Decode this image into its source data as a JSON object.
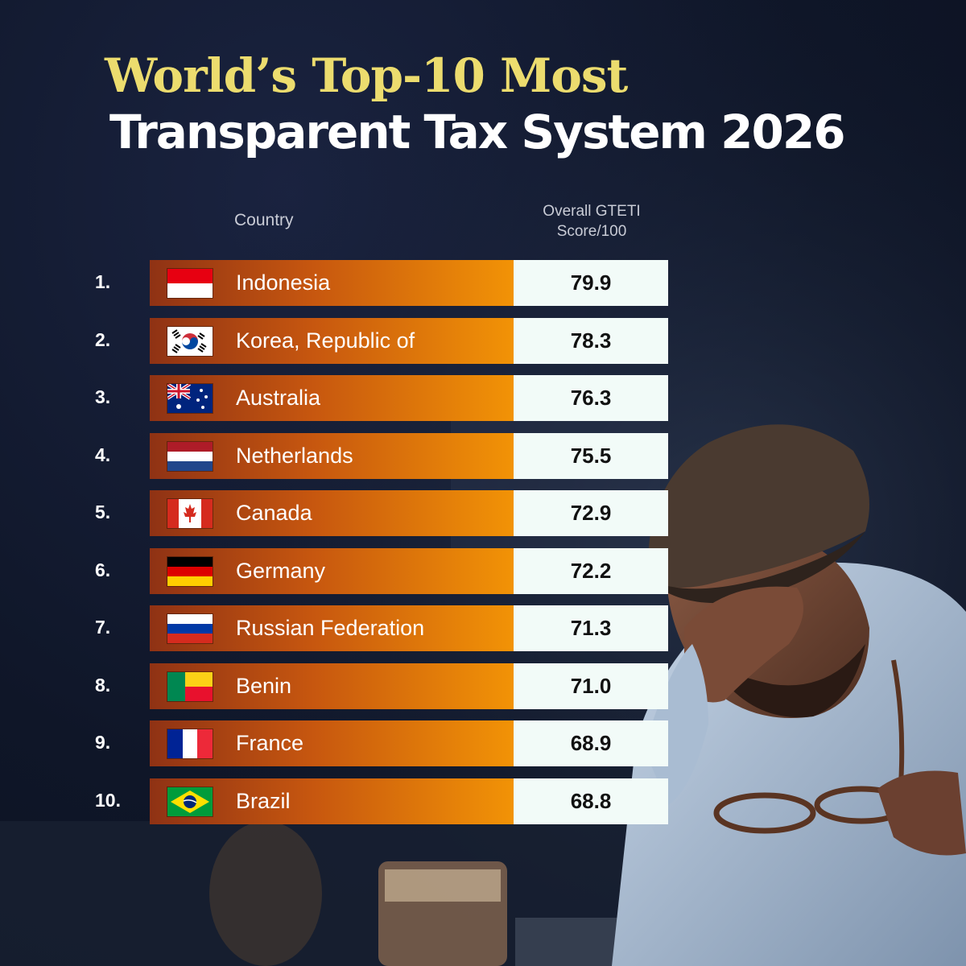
{
  "title_line1": "World’s Top-10 Most",
  "title_line2": "Transparent Tax System 2026",
  "columns": {
    "country": "Country",
    "score_line1": "Overall GTETI",
    "score_line2": "Score/100"
  },
  "colors": {
    "title_accent": "#ecdc6e",
    "bar_start": "#8f3214",
    "bar_end": "#f29306",
    "score_bg": "#f2fbf8"
  },
  "chart_data": {
    "type": "table",
    "columns": [
      "Country",
      "Overall GTETI Score/100"
    ],
    "rows": [
      {
        "rank": "1.",
        "country": "Indonesia",
        "score": "79.9",
        "flag": "indonesia-flag-icon"
      },
      {
        "rank": "2.",
        "country": "Korea, Republic of",
        "score": "78.3",
        "flag": "south-korea-flag-icon"
      },
      {
        "rank": "3.",
        "country": "Australia",
        "score": "76.3",
        "flag": "australia-flag-icon"
      },
      {
        "rank": "4.",
        "country": "Netherlands",
        "score": "75.5",
        "flag": "netherlands-flag-icon"
      },
      {
        "rank": "5.",
        "country": "Canada",
        "score": "72.9",
        "flag": "canada-flag-icon"
      },
      {
        "rank": "6.",
        "country": "Germany",
        "score": "72.2",
        "flag": "germany-flag-icon"
      },
      {
        "rank": "7.",
        "country": "Russian Federation",
        "score": "71.3",
        "flag": "russia-flag-icon"
      },
      {
        "rank": "8.",
        "country": "Benin",
        "score": "71.0",
        "flag": "benin-flag-icon"
      },
      {
        "rank": "9.",
        "country": "France",
        "score": "68.9",
        "flag": "france-flag-icon"
      },
      {
        "rank": "10.",
        "country": "Brazil",
        "score": "68.8",
        "flag": "brazil-flag-icon"
      }
    ]
  }
}
